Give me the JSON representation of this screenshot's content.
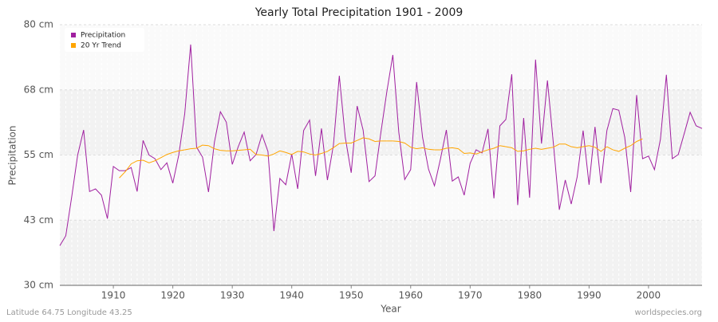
{
  "chart_data": {
    "type": "line",
    "title": "Yearly Total Precipitation 1901 - 2009",
    "x_label": "Year",
    "y_label": "Precipitation",
    "footer_left": "Latitude 64.75 Longitude 43.25",
    "footer_right": "worldspecies.org",
    "x": [
      1901,
      1902,
      1903,
      1904,
      1905,
      1906,
      1907,
      1908,
      1909,
      1910,
      1911,
      1912,
      1913,
      1914,
      1915,
      1916,
      1917,
      1918,
      1919,
      1920,
      1921,
      1922,
      1923,
      1924,
      1925,
      1926,
      1927,
      1928,
      1929,
      1930,
      1931,
      1932,
      1933,
      1934,
      1935,
      1936,
      1937,
      1938,
      1939,
      1940,
      1941,
      1942,
      1943,
      1944,
      1945,
      1946,
      1947,
      1948,
      1949,
      1950,
      1951,
      1952,
      1953,
      1954,
      1955,
      1956,
      1957,
      1958,
      1959,
      1960,
      1961,
      1962,
      1963,
      1964,
      1965,
      1966,
      1967,
      1968,
      1969,
      1970,
      1971,
      1972,
      1973,
      1974,
      1975,
      1976,
      1977,
      1978,
      1979,
      1980,
      1981,
      1982,
      1983,
      1984,
      1985,
      1986,
      1987,
      1988,
      1989,
      1990,
      1991,
      1992,
      1993,
      1994,
      1995,
      1996,
      1997,
      1998,
      1999,
      2000,
      2001,
      2002,
      2003,
      2004,
      2005,
      2006,
      2007,
      2008,
      2009
    ],
    "series": [
      {
        "name": "Precipitation",
        "color": "#a020a0",
        "values": [
          37.6,
          39.5,
          47,
          55,
          59.8,
          48,
          48.5,
          47.3,
          42.8,
          52.8,
          52,
          52,
          52.6,
          48,
          57.8,
          55,
          54.3,
          52.2,
          53.5,
          49.6,
          55,
          62.9,
          76.2,
          56.5,
          54.6,
          47.9,
          57.5,
          63.3,
          61.3,
          53.2,
          56.6,
          59.4,
          53.9,
          55.1,
          58.9,
          55.7,
          40.4,
          50.5,
          49.3,
          55.2,
          48.5,
          59.7,
          61.7,
          51,
          60.1,
          50.2,
          56.8,
          70.2,
          58.4,
          51.6,
          64.4,
          59.8,
          49.9,
          51,
          59.4,
          67.2,
          74.2,
          59.4,
          50.3,
          52.2,
          69,
          58.4,
          52.3,
          49.1,
          54.2,
          59.8,
          50,
          50.8,
          47.3,
          53.4,
          56,
          55.4,
          60,
          46.7,
          60.6,
          61.8,
          70.5,
          45.4,
          62.1,
          46.8,
          73.3,
          57.2,
          69.3,
          57.2,
          44.5,
          50.2,
          45.6,
          50.8,
          59.7,
          49.3,
          60.4,
          49.6,
          59.7,
          63.9,
          63.6,
          58.4,
          47.9,
          66.5,
          54.3,
          54.8,
          52.2,
          58,
          70.4,
          54.3,
          55.1,
          59.1,
          63.2,
          60.6,
          60.1
        ]
      },
      {
        "name": "20 Yr Trend",
        "color": "#ffa500",
        "values": [
          null,
          null,
          null,
          null,
          null,
          null,
          null,
          null,
          null,
          null,
          50.6,
          51.8,
          53.3,
          53.9,
          54,
          53.5,
          53.9,
          54.5,
          55.1,
          55.5,
          55.8,
          56,
          56.2,
          56.3,
          56.9,
          56.8,
          56.2,
          55.9,
          55.8,
          55.8,
          55.9,
          56,
          56.1,
          55.1,
          55,
          54.8,
          55.2,
          55.8,
          55.5,
          55.1,
          55.7,
          55.6,
          55.2,
          55,
          55.3,
          55.7,
          56.4,
          57.2,
          57.3,
          57.3,
          57.8,
          58.3,
          58.1,
          57.6,
          57.7,
          57.7,
          57.7,
          57.6,
          57.3,
          56.5,
          56.2,
          56.4,
          56.1,
          56,
          56,
          56.3,
          56.4,
          56.2,
          55.3,
          55.4,
          55.2,
          55.6,
          56,
          56.3,
          56.8,
          56.6,
          56.4,
          55.7,
          55.8,
          56.1,
          56.3,
          56.1,
          56.3,
          56.5,
          57.1,
          57.1,
          56.6,
          56.4,
          56.6,
          56.8,
          56.5,
          55.7,
          56.6,
          56,
          55.7,
          56.3,
          56.8,
          57.6,
          58.1,
          null,
          null,
          null,
          null,
          null,
          null,
          null,
          null,
          null,
          null
        ]
      }
    ],
    "xlim": [
      1901,
      2009
    ],
    "xticks": [
      1910,
      1920,
      1930,
      1940,
      1950,
      1960,
      1970,
      1980,
      1990,
      2000
    ],
    "ylim": [
      30,
      80
    ],
    "yticks": [
      {
        "value": 30,
        "label": "30 cm"
      },
      {
        "value": 42.5,
        "label": "43 cm"
      },
      {
        "value": 55,
        "label": "55 cm"
      },
      {
        "value": 67.5,
        "label": "68 cm"
      },
      {
        "value": 80,
        "label": "80 cm"
      }
    ],
    "grid": true,
    "legend": "top-left"
  }
}
